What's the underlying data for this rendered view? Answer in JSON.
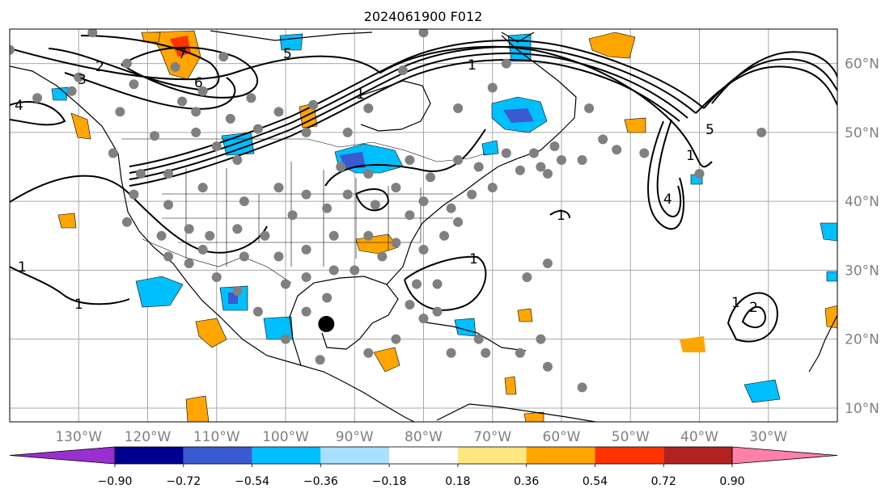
{
  "title": "2024061900 F012",
  "map": {
    "lon_range": [
      -140,
      -20
    ],
    "lat_range": [
      8,
      65
    ],
    "lon_labels": [
      "130°W",
      "120°W",
      "110°W",
      "100°W",
      "90°W",
      "80°W",
      "70°W",
      "60°W",
      "50°W",
      "40°W",
      "30°W"
    ],
    "lat_labels": [
      "60°N",
      "50°N",
      "40°N",
      "30°N",
      "20°N",
      "10°N"
    ],
    "grid": true,
    "contour_labels": [
      "2",
      "3",
      "6",
      "7",
      "4",
      "5",
      "1",
      "1",
      "1",
      "1",
      "1",
      "4",
      "5",
      "1",
      "1",
      "2",
      "1"
    ],
    "storm_marker": {
      "lon": -94.1,
      "lat": 22.2
    }
  },
  "colorbar": {
    "ticks": [
      "−0.90",
      "−0.72",
      "−0.54",
      "−0.36",
      "−0.18",
      "0.18",
      "0.36",
      "0.54",
      "0.72",
      "0.90"
    ],
    "colors": [
      "#9a2fd0",
      "#000090",
      "#3a5ad0",
      "#00bfff",
      "#aadfff",
      "#ffffff",
      "#ffe680",
      "#ffa500",
      "#ff3300",
      "#b22222",
      "#ff80a8"
    ]
  },
  "stations": [
    [
      -140,
      62
    ],
    [
      -128,
      64.5
    ],
    [
      -130,
      58
    ],
    [
      -123,
      60
    ],
    [
      -116,
      59.5
    ],
    [
      -109,
      61
    ],
    [
      -115,
      54.5
    ],
    [
      -112,
      56
    ],
    [
      -105,
      55
    ],
    [
      -108,
      52
    ],
    [
      -101,
      53
    ],
    [
      -96,
      54
    ],
    [
      -88,
      53.5
    ],
    [
      -80,
      64.5
    ],
    [
      -83,
      59
    ],
    [
      -75,
      53.5
    ],
    [
      -68,
      60
    ],
    [
      -70,
      56.5
    ],
    [
      -56,
      53.5
    ],
    [
      -54,
      49
    ],
    [
      -52,
      47.5
    ],
    [
      -61,
      48
    ],
    [
      -63,
      45
    ],
    [
      -66,
      44.5
    ],
    [
      -75,
      46
    ],
    [
      -79,
      43.5
    ],
    [
      -82,
      46
    ],
    [
      -91,
      50
    ],
    [
      -97,
      50
    ],
    [
      -104,
      50.5
    ],
    [
      -113,
      50
    ],
    [
      -119,
      49.5
    ],
    [
      -124,
      53
    ],
    [
      -136,
      55
    ],
    [
      -131,
      56
    ],
    [
      -122,
      57
    ],
    [
      -113,
      53
    ],
    [
      -110,
      48
    ],
    [
      -107,
      46
    ],
    [
      -117,
      44
    ],
    [
      -121,
      44
    ],
    [
      -125,
      47
    ],
    [
      -122,
      41
    ],
    [
      -117,
      39.5
    ],
    [
      -112,
      42
    ],
    [
      -106,
      40
    ],
    [
      -101,
      42
    ],
    [
      -97,
      41
    ],
    [
      -92,
      45
    ],
    [
      -88,
      44
    ],
    [
      -84,
      42
    ],
    [
      -80,
      40
    ],
    [
      -76,
      39
    ],
    [
      -73,
      41
    ],
    [
      -70,
      42
    ],
    [
      -72,
      45
    ],
    [
      -68,
      47
    ],
    [
      -64,
      47
    ],
    [
      -60,
      46
    ],
    [
      -62,
      44
    ],
    [
      -57,
      46
    ],
    [
      -48,
      47
    ],
    [
      -40,
      44
    ],
    [
      -31,
      50
    ],
    [
      -82,
      38
    ],
    [
      -87,
      39.5
    ],
    [
      -91,
      41
    ],
    [
      -94,
      39
    ],
    [
      -99,
      38
    ],
    [
      -103,
      35
    ],
    [
      -107,
      36
    ],
    [
      -111,
      35
    ],
    [
      -114,
      36
    ],
    [
      -118,
      35
    ],
    [
      -123,
      37
    ],
    [
      -112,
      33
    ],
    [
      -106,
      32
    ],
    [
      -101,
      32
    ],
    [
      -97,
      33
    ],
    [
      -93,
      35
    ],
    [
      -88,
      35
    ],
    [
      -84,
      34
    ],
    [
      -80,
      33
    ],
    [
      -77,
      35
    ],
    [
      -75,
      37
    ],
    [
      -86,
      32
    ],
    [
      -90,
      30
    ],
    [
      -93,
      30
    ],
    [
      -97,
      29
    ],
    [
      -100,
      28
    ],
    [
      -81,
      28
    ],
    [
      -82,
      25
    ],
    [
      -78,
      24
    ],
    [
      -71,
      18
    ],
    [
      -66,
      18
    ],
    [
      -72,
      20
    ],
    [
      -80,
      23
    ],
    [
      -84,
      20
    ],
    [
      -88,
      18
    ],
    [
      -95,
      17
    ],
    [
      -100,
      20
    ],
    [
      -104,
      24
    ],
    [
      -107,
      27
    ],
    [
      -110,
      29
    ],
    [
      -114,
      31
    ],
    [
      -117,
      32
    ],
    [
      -94,
      26
    ],
    [
      -97,
      24
    ],
    [
      -62,
      31
    ],
    [
      -65,
      29
    ],
    [
      -57,
      13
    ],
    [
      -62,
      16
    ],
    [
      -76,
      18
    ],
    [
      -63,
      20
    ],
    [
      -78,
      28
    ]
  ]
}
